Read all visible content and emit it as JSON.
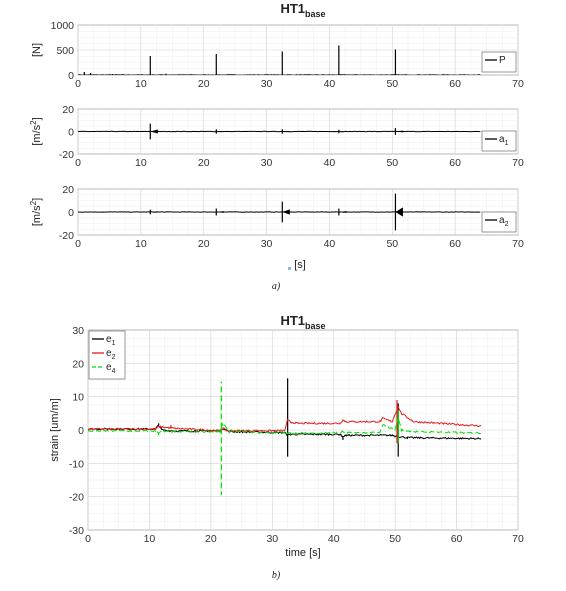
{
  "figure_a": {
    "title": "HT1",
    "title_subscript": "base",
    "caption": "a)",
    "xlabel": "[s]"
  },
  "figure_b": {
    "title": "HT1",
    "title_subscript": "base",
    "caption": "b)"
  },
  "chart_data": [
    {
      "type": "line",
      "ylabel": "[N]",
      "xlim": [
        0,
        70
      ],
      "ylim": [
        0,
        1000
      ],
      "xticks": [
        "0",
        "10",
        "20",
        "30",
        "40",
        "50",
        "60",
        "70"
      ],
      "yticks": [
        "0",
        "500",
        "1000"
      ],
      "grid": "on",
      "legend_position": "right",
      "series": [
        {
          "name": "P",
          "legend_main": "P",
          "legend_sub": "",
          "color": "#000000",
          "baseline": 0,
          "spikes": [
            [
              1,
              60
            ],
            [
              2,
              40
            ],
            [
              5.5,
              20
            ],
            [
              11.5,
              380
            ],
            [
              14,
              25
            ],
            [
              22,
              420
            ],
            [
              32.5,
              470
            ],
            [
              41.5,
              590
            ],
            [
              50.5,
              510
            ]
          ]
        }
      ]
    },
    {
      "type": "line",
      "ylabel": "[m/s2]",
      "xlim": [
        0,
        70
      ],
      "ylim": [
        -20,
        20
      ],
      "xticks": [
        "0",
        "10",
        "20",
        "30",
        "40",
        "50",
        "60",
        "70"
      ],
      "yticks": [
        "-20",
        "0",
        "20"
      ],
      "grid": "on",
      "legend_position": "right",
      "series": [
        {
          "name": "a1",
          "legend_main": "a",
          "legend_sub": "1",
          "color": "#000000",
          "baseline": 0,
          "spikes": [
            [
              11.5,
              7
            ],
            [
              22,
              2
            ],
            [
              32.5,
              2
            ],
            [
              41.5,
              1.5
            ],
            [
              50.5,
              3
            ]
          ]
        }
      ]
    },
    {
      "type": "line",
      "ylabel": "[m/s2]",
      "xlim": [
        0,
        70
      ],
      "ylim": [
        -20,
        20
      ],
      "xticks": [
        "0",
        "10",
        "20",
        "30",
        "40",
        "50",
        "60",
        "70"
      ],
      "yticks": [
        "-20",
        "0",
        "20"
      ],
      "grid": "on",
      "legend_position": "right",
      "series": [
        {
          "name": "a2",
          "legend_main": "a",
          "legend_sub": "2",
          "color": "#000000",
          "baseline": 0,
          "spikes": [
            [
              11.5,
              2
            ],
            [
              22,
              3
            ],
            [
              32.5,
              9
            ],
            [
              41.5,
              3
            ],
            [
              50.5,
              16
            ]
          ]
        }
      ]
    },
    {
      "type": "line",
      "ylabel": "strain [um/m]",
      "xlabel": "time [s]",
      "xlim": [
        0,
        70
      ],
      "ylim": [
        -30,
        30
      ],
      "xticks": [
        "0",
        "10",
        "20",
        "30",
        "40",
        "50",
        "60",
        "70"
      ],
      "yticks": [
        "-30",
        "-20",
        "-10",
        "0",
        "10",
        "20",
        "30"
      ],
      "grid": "on",
      "legend_position": "top-left",
      "series": [
        {
          "name": "e1",
          "legend_main": "e",
          "legend_sub": "1",
          "color": "#000000",
          "dash": "",
          "x": [
            0,
            11,
            11.5,
            12,
            14,
            21.5,
            22,
            23,
            32,
            32.5,
            33,
            41,
            41.5,
            42,
            49.5,
            50.5,
            52,
            64
          ],
          "y": [
            0.3,
            0.3,
            1.5,
            0,
            -0.3,
            -0.3,
            0.5,
            -0.5,
            -0.8,
            -1.5,
            -1.3,
            -1.3,
            -2,
            -1.6,
            -1.6,
            -2,
            -2.3,
            -2.6
          ],
          "spikes": [
            [
              11.5,
              2
            ],
            [
              32.5,
              15.5
            ],
            [
              32.5,
              -8
            ],
            [
              41.5,
              -3
            ],
            [
              50.5,
              8
            ],
            [
              50.5,
              -8
            ]
          ]
        },
        {
          "name": "e2",
          "legend_main": "e",
          "legend_sub": "2",
          "color": "#e41a1c",
          "dash": "",
          "x": [
            0,
            11,
            11.5,
            14,
            21.5,
            22,
            22.5,
            32,
            32.5,
            33,
            34,
            41,
            41.5,
            42,
            47.5,
            48,
            49.5,
            50.5,
            51,
            53,
            64
          ],
          "y": [
            0.3,
            0.3,
            1,
            0.5,
            -0.2,
            0.5,
            -0.2,
            -0.2,
            3,
            2.4,
            2,
            2,
            3,
            2.5,
            2.5,
            3.5,
            2.5,
            7,
            5,
            2.5,
            1.2
          ],
          "spikes": [
            [
              13.5,
              1.5
            ],
            [
              50.3,
              9
            ],
            [
              50.3,
              -4
            ]
          ]
        },
        {
          "name": "e4",
          "legend_main": "e",
          "legend_sub": "4",
          "color": "#00dd00",
          "dash": "6,3",
          "x": [
            0,
            11,
            11.5,
            12,
            21.5,
            22,
            23,
            32,
            32.5,
            33,
            41,
            41.5,
            42,
            47.5,
            48,
            50,
            50.5,
            51,
            53,
            64
          ],
          "y": [
            -0.3,
            -0.3,
            -0.8,
            -0.5,
            -0.5,
            2,
            -0.5,
            -0.8,
            -1,
            -1,
            -0.8,
            -0.5,
            -0.8,
            -0.8,
            1.5,
            0,
            4,
            0,
            -0.5,
            -0.9
          ],
          "spikes": [
            [
              21.7,
              14.5
            ],
            [
              21.7,
              -19.5
            ],
            [
              11.5,
              -1.5
            ],
            [
              50.5,
              6
            ],
            [
              50.5,
              -4
            ]
          ]
        }
      ]
    }
  ]
}
